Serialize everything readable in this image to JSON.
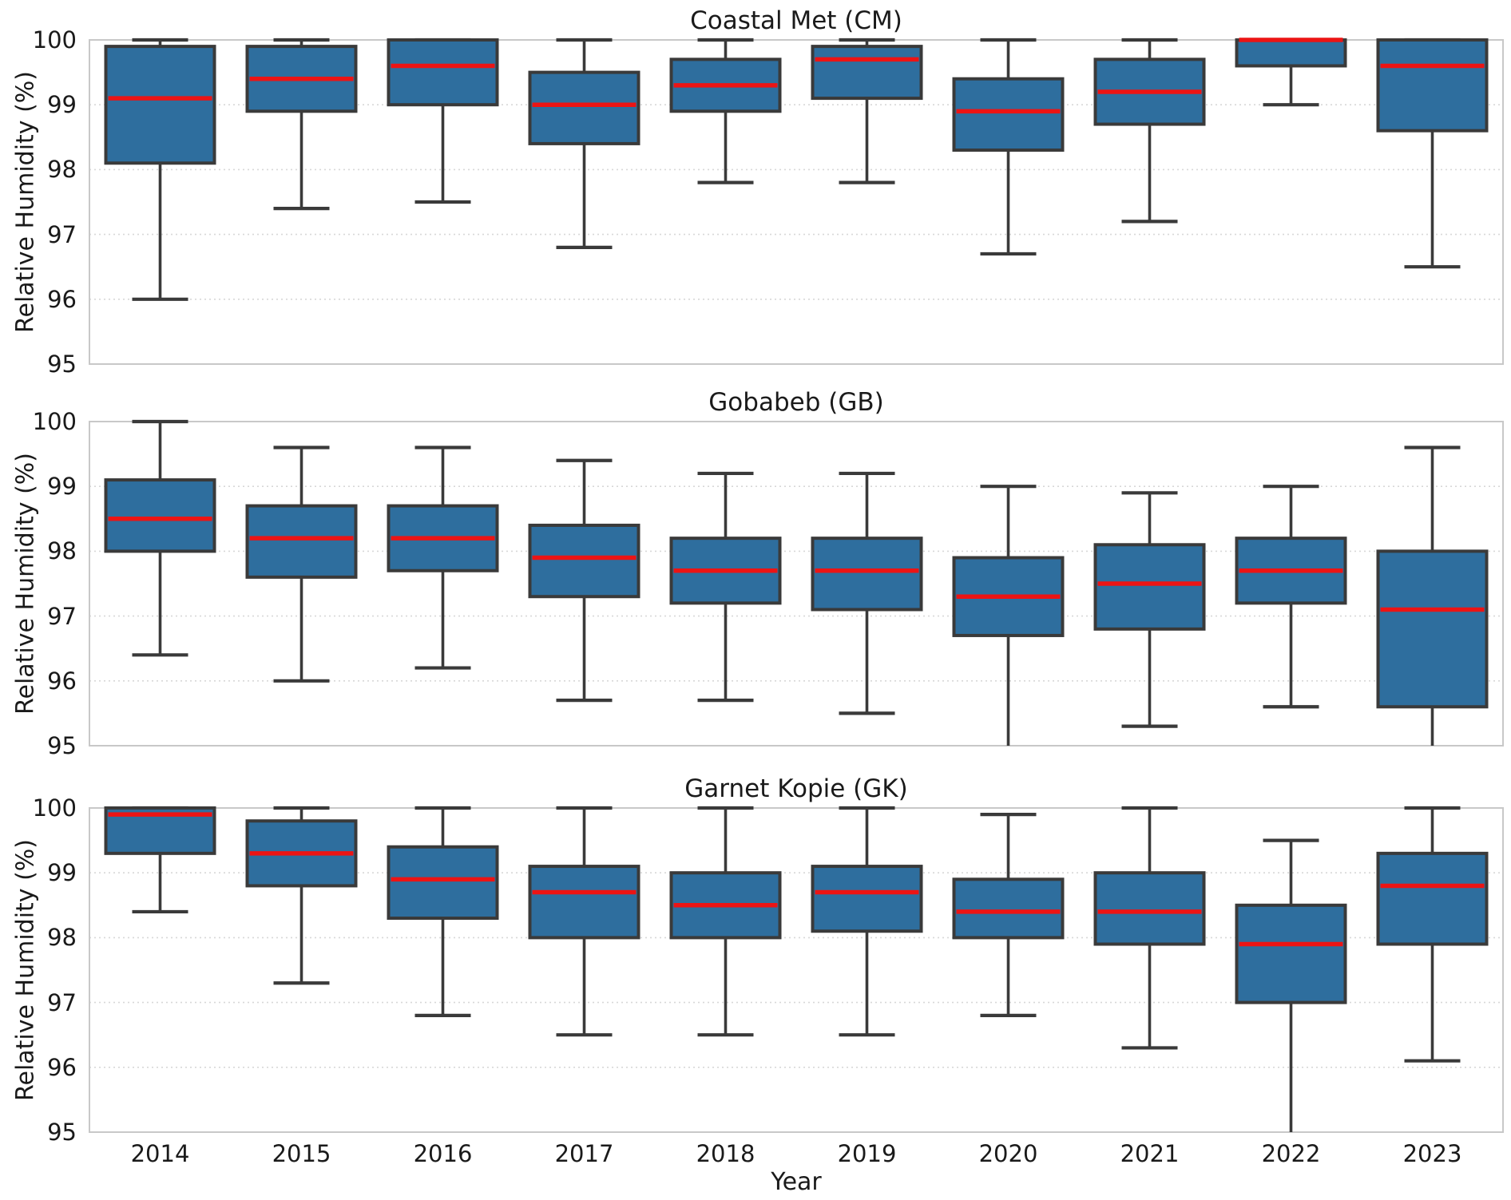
{
  "figure": {
    "xlabel": "Year",
    "ylabel": "Relative Humidity (%)",
    "years": [
      "2014",
      "2015",
      "2016",
      "2017",
      "2018",
      "2019",
      "2020",
      "2021",
      "2022",
      "2023"
    ],
    "yticks": [
      100,
      99,
      98,
      97,
      96,
      95
    ],
    "ylim": [
      95,
      100
    ],
    "colors": {
      "box_fill": "#2E6E9E",
      "box_edge": "#3A3A3A",
      "whisker": "#3A3A3A",
      "median": "#EC1414",
      "grid": "#D8D8D8",
      "spine": "#C8C8C8",
      "text": "#1A1A1A",
      "background": "#FFFFFF"
    }
  },
  "chart_data": [
    {
      "type": "box",
      "title": "Coastal Met (CM)",
      "ylabel": "Relative Humidity (%)",
      "xlabel": "Year",
      "ylim": [
        95,
        100
      ],
      "grid": "dashed-horizontal",
      "categories": [
        "2014",
        "2015",
        "2016",
        "2017",
        "2018",
        "2019",
        "2020",
        "2021",
        "2022",
        "2023"
      ],
      "boxes": [
        {
          "year": "2014",
          "whislo": 96.0,
          "q1": 98.1,
          "med": 99.1,
          "q3": 99.9,
          "whishi": 100.0
        },
        {
          "year": "2015",
          "whislo": 97.4,
          "q1": 98.9,
          "med": 99.4,
          "q3": 99.9,
          "whishi": 100.0
        },
        {
          "year": "2016",
          "whislo": 97.5,
          "q1": 99.0,
          "med": 99.6,
          "q3": 100.0,
          "whishi": 100.0
        },
        {
          "year": "2017",
          "whislo": 96.8,
          "q1": 98.4,
          "med": 99.0,
          "q3": 99.5,
          "whishi": 100.0
        },
        {
          "year": "2018",
          "whislo": 97.8,
          "q1": 98.9,
          "med": 99.3,
          "q3": 99.7,
          "whishi": 100.0
        },
        {
          "year": "2019",
          "whislo": 97.8,
          "q1": 99.1,
          "med": 99.7,
          "q3": 99.9,
          "whishi": 100.0
        },
        {
          "year": "2020",
          "whislo": 96.7,
          "q1": 98.3,
          "med": 98.9,
          "q3": 99.4,
          "whishi": 100.0
        },
        {
          "year": "2021",
          "whislo": 97.2,
          "q1": 98.7,
          "med": 99.2,
          "q3": 99.7,
          "whishi": 100.0
        },
        {
          "year": "2022",
          "whislo": 99.0,
          "q1": 99.6,
          "med": 100.0,
          "q3": 100.0,
          "whishi": 100.0
        },
        {
          "year": "2023",
          "whislo": 96.5,
          "q1": 98.6,
          "med": 99.6,
          "q3": 100.0,
          "whishi": 100.0
        }
      ]
    },
    {
      "type": "box",
      "title": "Gobabeb (GB)",
      "ylabel": "Relative Humidity (%)",
      "xlabel": "Year",
      "ylim": [
        95,
        100
      ],
      "grid": "dashed-horizontal",
      "categories": [
        "2014",
        "2015",
        "2016",
        "2017",
        "2018",
        "2019",
        "2020",
        "2021",
        "2022",
        "2023"
      ],
      "boxes": [
        {
          "year": "2014",
          "whislo": 96.4,
          "q1": 98.0,
          "med": 98.5,
          "q3": 99.1,
          "whishi": 100.0
        },
        {
          "year": "2015",
          "whislo": 96.0,
          "q1": 97.6,
          "med": 98.2,
          "q3": 98.7,
          "whishi": 99.6
        },
        {
          "year": "2016",
          "whislo": 96.2,
          "q1": 97.7,
          "med": 98.2,
          "q3": 98.7,
          "whishi": 99.6
        },
        {
          "year": "2017",
          "whislo": 95.7,
          "q1": 97.3,
          "med": 97.9,
          "q3": 98.4,
          "whishi": 99.4
        },
        {
          "year": "2018",
          "whislo": 95.7,
          "q1": 97.2,
          "med": 97.7,
          "q3": 98.2,
          "whishi": 99.2
        },
        {
          "year": "2019",
          "whislo": 95.5,
          "q1": 97.1,
          "med": 97.7,
          "q3": 98.2,
          "whishi": 99.2
        },
        {
          "year": "2020",
          "whislo": 95.0,
          "q1": 96.7,
          "med": 97.3,
          "q3": 97.9,
          "whishi": 99.0
        },
        {
          "year": "2021",
          "whislo": 95.3,
          "q1": 96.8,
          "med": 97.5,
          "q3": 98.1,
          "whishi": 98.9
        },
        {
          "year": "2022",
          "whislo": 95.6,
          "q1": 97.2,
          "med": 97.7,
          "q3": 98.2,
          "whishi": 99.0
        },
        {
          "year": "2023",
          "whislo": 95.0,
          "q1": 95.6,
          "med": 97.1,
          "q3": 98.0,
          "whishi": 99.6
        }
      ]
    },
    {
      "type": "box",
      "title": "Garnet Kopie (GK)",
      "ylabel": "Relative Humidity (%)",
      "xlabel": "Year",
      "ylim": [
        95,
        100
      ],
      "grid": "dashed-horizontal",
      "categories": [
        "2014",
        "2015",
        "2016",
        "2017",
        "2018",
        "2019",
        "2020",
        "2021",
        "2022",
        "2023"
      ],
      "boxes": [
        {
          "year": "2014",
          "whislo": 98.4,
          "q1": 99.3,
          "med": 99.9,
          "q3": 100.0,
          "whishi": 100.0
        },
        {
          "year": "2015",
          "whislo": 97.3,
          "q1": 98.8,
          "med": 99.3,
          "q3": 99.8,
          "whishi": 100.0
        },
        {
          "year": "2016",
          "whislo": 96.8,
          "q1": 98.3,
          "med": 98.9,
          "q3": 99.4,
          "whishi": 100.0
        },
        {
          "year": "2017",
          "whislo": 96.5,
          "q1": 98.0,
          "med": 98.7,
          "q3": 99.1,
          "whishi": 100.0
        },
        {
          "year": "2018",
          "whislo": 96.5,
          "q1": 98.0,
          "med": 98.5,
          "q3": 99.0,
          "whishi": 100.0
        },
        {
          "year": "2019",
          "whislo": 96.5,
          "q1": 98.1,
          "med": 98.7,
          "q3": 99.1,
          "whishi": 100.0
        },
        {
          "year": "2020",
          "whislo": 96.8,
          "q1": 98.0,
          "med": 98.4,
          "q3": 98.9,
          "whishi": 99.9
        },
        {
          "year": "2021",
          "whislo": 96.3,
          "q1": 97.9,
          "med": 98.4,
          "q3": 99.0,
          "whishi": 100.0
        },
        {
          "year": "2022",
          "whislo": 95.0,
          "q1": 97.0,
          "med": 97.9,
          "q3": 98.5,
          "whishi": 99.5
        },
        {
          "year": "2023",
          "whislo": 96.1,
          "q1": 97.9,
          "med": 98.8,
          "q3": 99.3,
          "whishi": 100.0
        }
      ]
    }
  ]
}
